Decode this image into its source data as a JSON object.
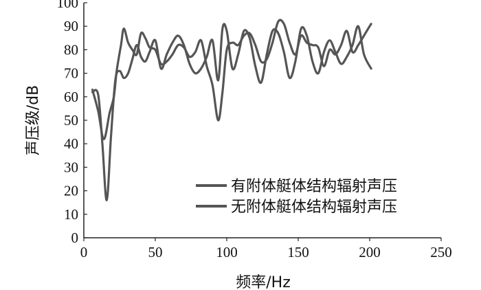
{
  "chart_data": {
    "type": "line",
    "xlabel": "频率/Hz",
    "ylabel": "声压级/dB",
    "xlim": [
      0,
      250
    ],
    "ylim": [
      0,
      100
    ],
    "xticks": [
      0,
      50,
      100,
      150,
      200,
      250
    ],
    "yticks": [
      0,
      10,
      20,
      30,
      40,
      50,
      60,
      70,
      80,
      90,
      100
    ],
    "grid": false,
    "legend_position": "lower-right",
    "series": [
      {
        "name": "有附体艇体结构辐射声压",
        "color": "#555555",
        "points": [
          [
            6,
            63
          ],
          [
            10,
            54
          ],
          [
            14,
            42
          ],
          [
            18,
            53
          ],
          [
            21,
            60
          ],
          [
            23,
            71
          ],
          [
            26,
            82
          ],
          [
            28,
            89
          ],
          [
            31,
            83
          ],
          [
            34,
            80
          ],
          [
            37,
            78
          ],
          [
            40,
            87
          ],
          [
            43,
            85
          ],
          [
            46,
            81
          ],
          [
            50,
            80
          ],
          [
            54,
            74
          ],
          [
            58,
            75
          ],
          [
            62,
            78
          ],
          [
            66,
            82
          ],
          [
            70,
            81
          ],
          [
            74,
            77
          ],
          [
            78,
            79
          ],
          [
            82,
            84
          ],
          [
            86,
            73
          ],
          [
            90,
            65
          ],
          [
            94,
            50
          ],
          [
            97,
            62
          ],
          [
            100,
            80
          ],
          [
            104,
            83
          ],
          [
            108,
            82
          ],
          [
            112,
            86
          ],
          [
            116,
            87
          ],
          [
            120,
            82
          ],
          [
            124,
            75
          ],
          [
            128,
            76
          ],
          [
            132,
            83
          ],
          [
            136,
            92
          ],
          [
            140,
            91
          ],
          [
            144,
            83
          ],
          [
            148,
            78
          ],
          [
            152,
            86
          ],
          [
            156,
            83
          ],
          [
            160,
            82
          ],
          [
            164,
            81
          ],
          [
            168,
            73
          ],
          [
            172,
            80
          ],
          [
            176,
            78
          ],
          [
            180,
            82
          ],
          [
            184,
            88
          ],
          [
            188,
            79
          ],
          [
            192,
            82
          ],
          [
            196,
            86
          ],
          [
            201,
            91
          ]
        ]
      },
      {
        "name": "无附体艇体结构辐射声压",
        "color": "#555555",
        "points": [
          [
            6,
            62
          ],
          [
            10,
            61
          ],
          [
            13,
            40
          ],
          [
            16,
            16
          ],
          [
            19,
            43
          ],
          [
            22,
            67
          ],
          [
            25,
            71
          ],
          [
            28,
            68
          ],
          [
            31,
            70
          ],
          [
            34,
            76
          ],
          [
            37,
            82
          ],
          [
            40,
            77
          ],
          [
            43,
            75
          ],
          [
            46,
            79
          ],
          [
            50,
            84
          ],
          [
            54,
            72
          ],
          [
            58,
            78
          ],
          [
            62,
            83
          ],
          [
            66,
            86
          ],
          [
            70,
            82
          ],
          [
            74,
            74
          ],
          [
            78,
            70
          ],
          [
            82,
            72
          ],
          [
            86,
            77
          ],
          [
            90,
            84
          ],
          [
            94,
            67
          ],
          [
            97,
            89
          ],
          [
            100,
            88
          ],
          [
            104,
            72
          ],
          [
            108,
            78
          ],
          [
            112,
            88
          ],
          [
            116,
            85
          ],
          [
            120,
            73
          ],
          [
            124,
            66
          ],
          [
            128,
            78
          ],
          [
            132,
            88
          ],
          [
            136,
            87
          ],
          [
            140,
            79
          ],
          [
            144,
            68
          ],
          [
            148,
            75
          ],
          [
            152,
            89
          ],
          [
            156,
            86
          ],
          [
            160,
            75
          ],
          [
            164,
            70
          ],
          [
            168,
            79
          ],
          [
            172,
            84
          ],
          [
            176,
            79
          ],
          [
            180,
            74
          ],
          [
            184,
            77
          ],
          [
            188,
            82
          ],
          [
            192,
            90
          ],
          [
            196,
            78
          ],
          [
            201,
            72
          ]
        ]
      }
    ]
  }
}
